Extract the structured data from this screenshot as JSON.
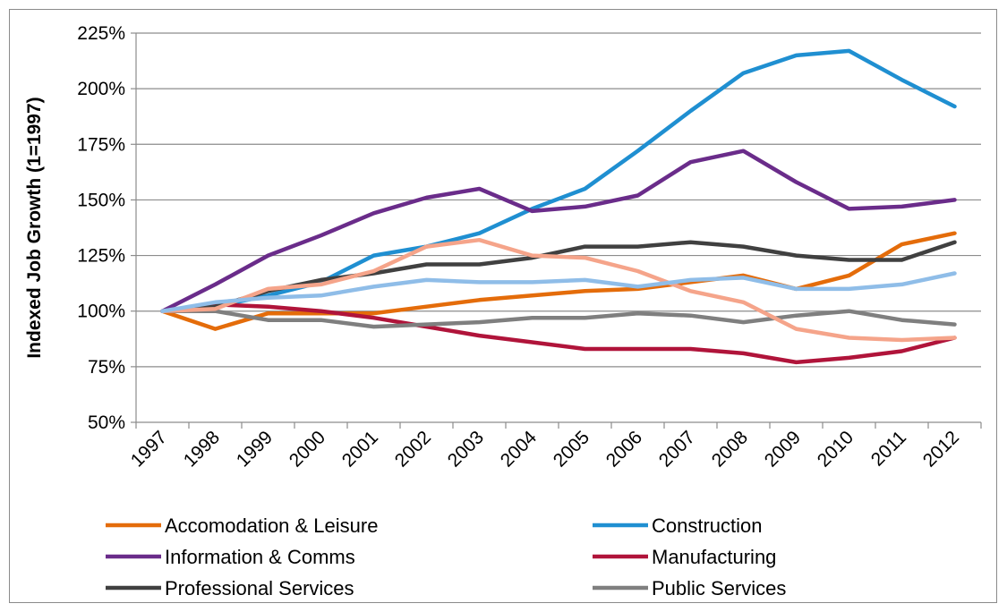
{
  "chart_data": {
    "type": "line",
    "title": "",
    "xlabel": "",
    "ylabel": "Indexed Job Growth (1=1997)",
    "ylim": [
      50,
      225
    ],
    "yticks": [
      "50%",
      "75%",
      "100%",
      "125%",
      "150%",
      "175%",
      "200%",
      "225%"
    ],
    "ytick_values": [
      50,
      75,
      100,
      125,
      150,
      175,
      200,
      225
    ],
    "grid": "horizontal",
    "legend": "bottom",
    "categories": [
      "1997",
      "1998",
      "1999",
      "2000",
      "2001",
      "2002",
      "2003",
      "2004",
      "2005",
      "2006",
      "2007",
      "2008",
      "2009",
      "2010",
      "2011",
      "2012"
    ],
    "series": [
      {
        "name": "Accomodation & Leisure",
        "color": "#E46C0A",
        "values": [
          100,
          92,
          99,
          99,
          99,
          102,
          105,
          107,
          109,
          110,
          113,
          116,
          110,
          116,
          130,
          135
        ]
      },
      {
        "name": "Construction",
        "color": "#1F8FD1",
        "values": [
          100,
          102,
          107,
          113,
          125,
          129,
          135,
          146,
          155,
          172,
          190,
          207,
          215,
          217,
          204,
          192
        ]
      },
      {
        "name": "Information & Comms",
        "color": "#6A2C8A",
        "values": [
          100,
          112,
          125,
          134,
          144,
          151,
          155,
          145,
          147,
          152,
          167,
          172,
          158,
          146,
          147,
          150
        ]
      },
      {
        "name": "Manufacturing",
        "color": "#B0143A",
        "values": [
          100,
          103,
          102,
          100,
          97,
          93,
          89,
          86,
          83,
          83,
          83,
          81,
          77,
          79,
          82,
          88
        ]
      },
      {
        "name": "Professional Services",
        "color": "#404040",
        "values": [
          100,
          102,
          109,
          114,
          117,
          121,
          121,
          124,
          129,
          129,
          131,
          129,
          125,
          123,
          123,
          131
        ]
      },
      {
        "name": "Public Services",
        "color": "#7F7F7F",
        "values": [
          100,
          100,
          96,
          96,
          93,
          94,
          95,
          97,
          97,
          99,
          98,
          95,
          98,
          100,
          96,
          94
        ]
      },
      {
        "name": "",
        "color": "#F5A48A",
        "values": [
          100,
          101,
          110,
          112,
          118,
          129,
          132,
          125,
          124,
          118,
          109,
          104,
          92,
          88,
          87,
          88
        ]
      },
      {
        "name": "",
        "color": "#8FBDE8",
        "values": [
          100,
          104,
          106,
          107,
          111,
          114,
          113,
          113,
          114,
          111,
          114,
          115,
          110,
          110,
          112,
          117
        ]
      }
    ]
  }
}
